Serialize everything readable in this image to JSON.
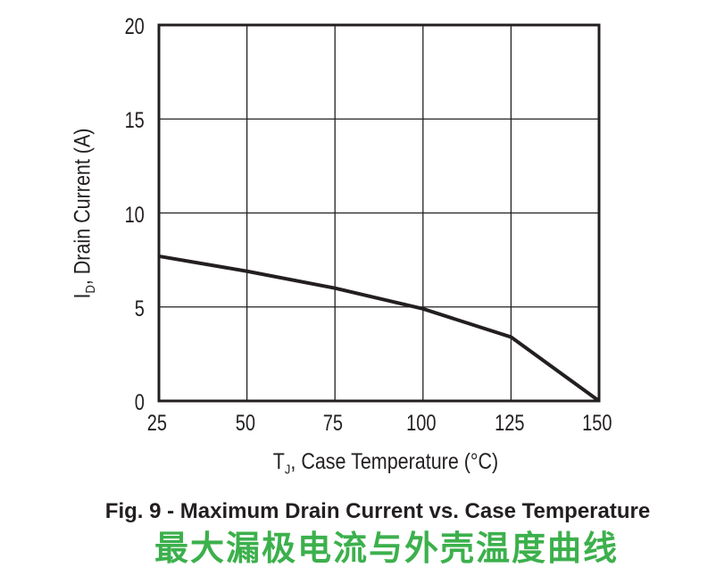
{
  "figure": {
    "caption": "Fig. 9 - Maximum Drain Current vs. Case Temperature",
    "caption_zh": "最大漏极电流与外壳温度曲线"
  },
  "axes": {
    "x_label_pre": "T",
    "x_label_sub": "J",
    "x_label_post": ", Case Temperature (°C)",
    "y_label_pre": "I",
    "y_label_sub": "D",
    "y_label_post": ", Drain Current (A)"
  },
  "colors": {
    "ink": "#231f20",
    "grid": "#231f20",
    "caption_zh_green": "#3cb04c"
  },
  "chart_data": {
    "type": "line",
    "title": "Fig. 9 - Maximum Drain Current vs. Case Temperature",
    "title_zh": "最大漏极电流与外壳温度曲线",
    "xlabel": "TJ, Case Temperature (°C)",
    "ylabel": "ID, Drain Current (A)",
    "x": [
      25,
      50,
      75,
      100,
      125,
      150
    ],
    "y": [
      7.7,
      6.9,
      6.0,
      4.9,
      3.4,
      0
    ],
    "xlim": [
      25,
      150
    ],
    "ylim": [
      0,
      20
    ],
    "x_ticks": [
      25,
      50,
      75,
      100,
      125,
      150
    ],
    "y_ticks": [
      0,
      5,
      10,
      15,
      20
    ],
    "grid": true,
    "legend": "none",
    "line_color": "#231f20",
    "line_width": 4
  }
}
